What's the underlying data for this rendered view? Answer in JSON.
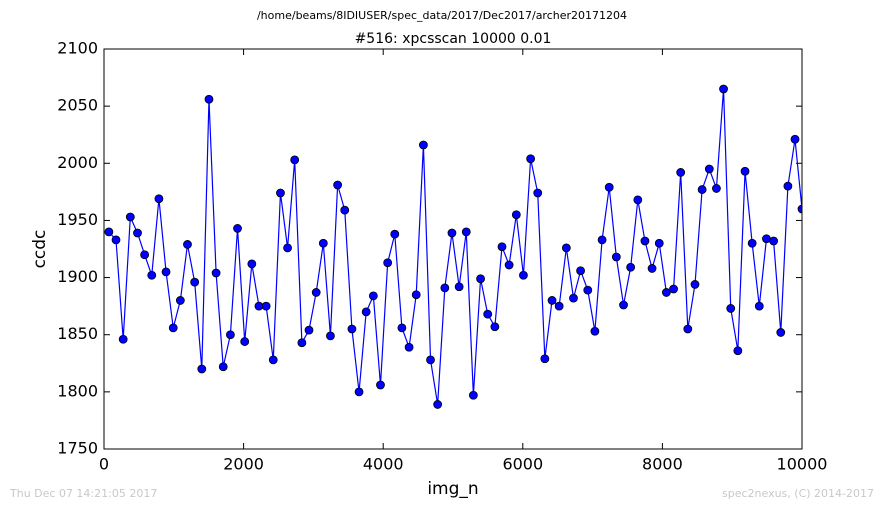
{
  "chart_data": {
    "type": "line",
    "suptitle": "/home/beams/8IDIUSER/spec_data/2017/Dec2017/archer20171204",
    "title": "#516: xpcsscan 10000 0.01",
    "xlabel": "img_n",
    "ylabel": "ccdc",
    "footer_left": "Thu Dec 07 14:21:05 2017",
    "footer_right": "spec2nexus, (C) 2014-2017",
    "xlim": [
      0,
      10000
    ],
    "ylim": [
      1750,
      2100
    ],
    "xticks": [
      0,
      2000,
      4000,
      6000,
      8000,
      10000
    ],
    "yticks": [
      1750,
      1800,
      1850,
      1900,
      1950,
      2000,
      2050,
      2100
    ],
    "grid": false,
    "x": [
      70,
      172,
      275,
      377,
      480,
      582,
      684,
      787,
      889,
      992,
      1094,
      1196,
      1299,
      1401,
      1504,
      1606,
      1708,
      1811,
      1913,
      2016,
      2118,
      2220,
      2323,
      2425,
      2528,
      2630,
      2732,
      2835,
      2937,
      3040,
      3142,
      3244,
      3347,
      3449,
      3552,
      3654,
      3756,
      3859,
      3961,
      4064,
      4166,
      4268,
      4371,
      4473,
      4576,
      4678,
      4780,
      4883,
      4985,
      5088,
      5190,
      5292,
      5395,
      5497,
      5600,
      5702,
      5804,
      5907,
      6009,
      6112,
      6214,
      6316,
      6419,
      6521,
      6624,
      6726,
      6828,
      6931,
      7033,
      7136,
      7238,
      7340,
      7443,
      7545,
      7648,
      7750,
      7852,
      7955,
      8057,
      8160,
      8262,
      8364,
      8467,
      8569,
      8672,
      8774,
      8876,
      8979,
      9081,
      9184,
      9286,
      9388,
      9491,
      9593,
      9696,
      9798,
      9900,
      10000
    ],
    "series": [
      {
        "color": "#0000ff",
        "marker_edge": "#000000",
        "values": [
          1940,
          1933,
          1846,
          1953,
          1939,
          1920,
          1902,
          1969,
          1905,
          1856,
          1880,
          1929,
          1896,
          1820,
          2056,
          1904,
          1822,
          1850,
          1943,
          1844,
          1912,
          1875,
          1875,
          1828,
          1974,
          1926,
          2003,
          1843,
          1854,
          1887,
          1930,
          1849,
          1981,
          1959,
          1855,
          1800,
          1870,
          1884,
          1806,
          1913,
          1938,
          1856,
          1839,
          1885,
          2016,
          1828,
          1789,
          1891,
          1939,
          1892,
          1940,
          1797,
          1899,
          1868,
          1857,
          1927,
          1911,
          1955,
          1902,
          2004,
          1974,
          1829,
          1880,
          1875,
          1926,
          1882,
          1906,
          1889,
          1853,
          1933,
          1979,
          1918,
          1876,
          1909,
          1968,
          1932,
          1908,
          1930,
          1887,
          1890,
          1992,
          1855,
          1894,
          1977,
          1995,
          1978,
          2065,
          1873,
          1836,
          1993,
          1930,
          1875,
          1934,
          1932,
          1852,
          1980,
          2021,
          1960
        ]
      }
    ]
  }
}
